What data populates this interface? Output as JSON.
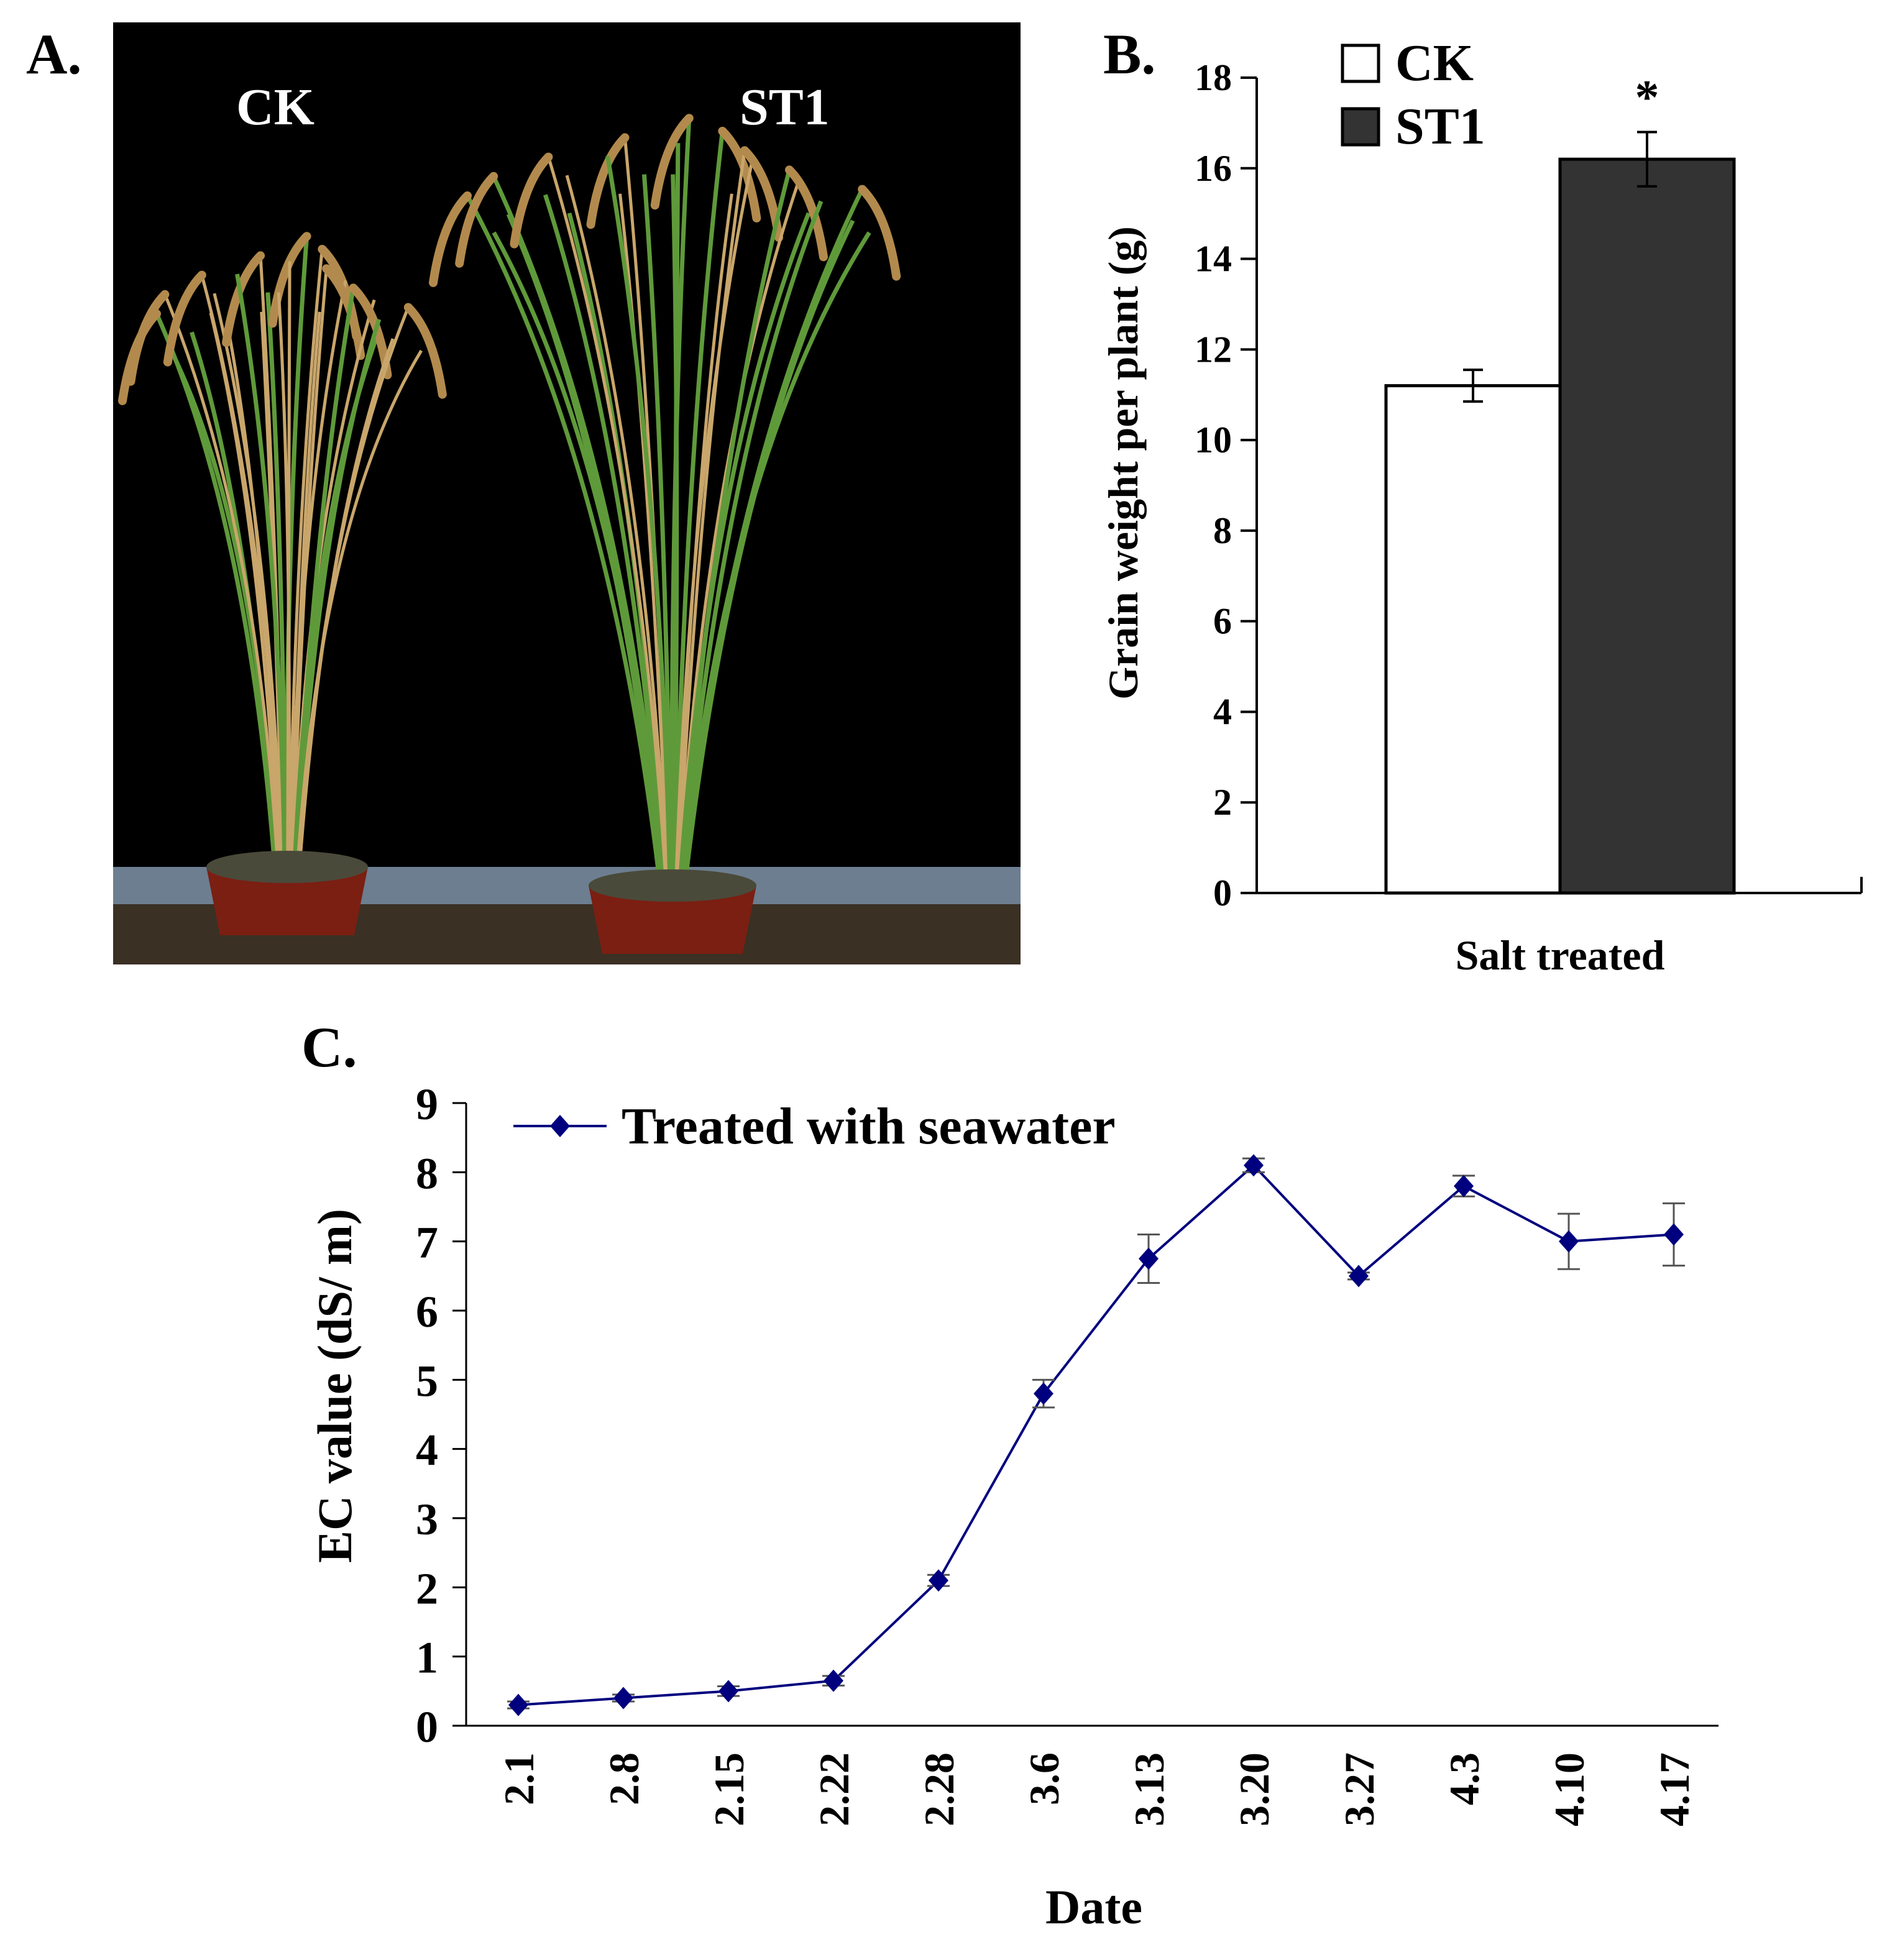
{
  "panels": {
    "a": {
      "label": "A.",
      "caption_left": "CK",
      "caption_right": "ST1"
    },
    "b": {
      "label": "B."
    },
    "c": {
      "label": "C."
    }
  },
  "colors": {
    "ck_fill": "#ffffff",
    "st1_fill": "#333333",
    "line": "#00007f",
    "photo_bg": "#000000",
    "stem_green": "#5f9a3a",
    "stem_straw": "#c9a66b",
    "pot": "#7a1f12"
  },
  "chart_data": [
    {
      "id": "B",
      "type": "bar",
      "categories": [
        "Salt treated"
      ],
      "series": [
        {
          "name": "CK",
          "values": [
            11.2
          ],
          "error": [
            0.35
          ],
          "color": "#ffffff"
        },
        {
          "name": "ST1",
          "values": [
            16.2
          ],
          "error": [
            0.6
          ],
          "color": "#333333",
          "annotation": "*"
        }
      ],
      "title": "",
      "xlabel": "Salt treated",
      "ylabel": "Grain weight per plant (g)",
      "ylim": [
        0,
        18
      ],
      "yticks": [
        0,
        2,
        4,
        6,
        8,
        10,
        12,
        14,
        16,
        18
      ],
      "ytick_labels": [
        "0",
        "2",
        "4",
        "6",
        "8",
        "10",
        "12",
        "14",
        "16",
        "18"
      ],
      "legend": [
        "CK",
        "ST1"
      ],
      "legend_position": "top-left",
      "grid": false
    },
    {
      "id": "C",
      "type": "line",
      "x": [
        "2.1",
        "2.8",
        "2.15",
        "2.22",
        "2.28",
        "3.6",
        "3.13",
        "3.20",
        "3.27",
        "4.3",
        "4.10",
        "4.17"
      ],
      "series": [
        {
          "name": "Treated with seawater",
          "values": [
            0.3,
            0.4,
            0.5,
            0.65,
            2.1,
            4.8,
            6.75,
            8.1,
            6.5,
            7.8,
            7.0,
            7.1
          ],
          "error": [
            0.05,
            0.05,
            0.07,
            0.07,
            0.08,
            0.2,
            0.35,
            0.1,
            0.05,
            0.15,
            0.4,
            0.45
          ],
          "color": "#00007f",
          "marker": "diamond"
        }
      ],
      "title": "",
      "xlabel": "Date",
      "ylabel": "EC value (dS/ m)",
      "ylim": [
        0,
        9
      ],
      "yticks": [
        0,
        1,
        2,
        3,
        4,
        5,
        6,
        7,
        8,
        9
      ],
      "ytick_labels": [
        "0",
        "1",
        "2",
        "3",
        "4",
        "5",
        "6",
        "7",
        "8",
        "9"
      ],
      "legend_position": "top-left",
      "grid": false
    }
  ]
}
